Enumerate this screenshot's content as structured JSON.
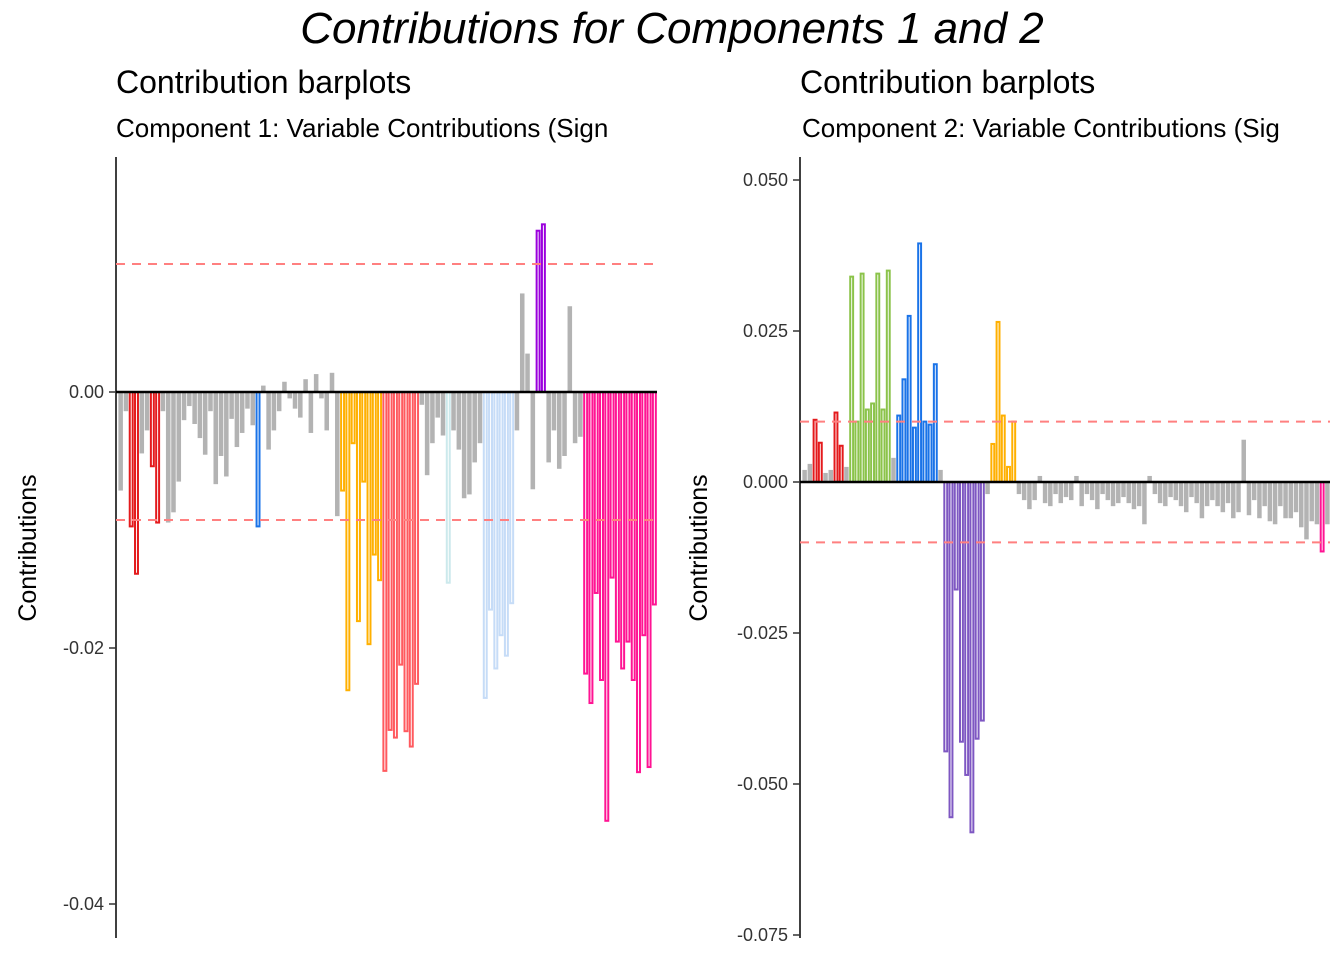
{
  "page": {
    "title": "Contributions for Components 1 and 2"
  },
  "colors": {
    "grey": "#b3b3b3",
    "axis": "#000000",
    "threshold": "#ff8080"
  },
  "chart_data": [
    {
      "type": "bar",
      "title": "Contribution barplots",
      "subtitle": "Component 1: Variable Contributions (Sign",
      "xlabel": "",
      "ylabel": "Contributions",
      "ylim": [
        -0.042,
        0.018
      ],
      "yticks": [
        0.0,
        -0.02,
        -0.04
      ],
      "yticklabels": [
        "0.00",
        "-0.02",
        "-0.04"
      ],
      "thresholds": [
        0.01,
        -0.01
      ],
      "grid": false,
      "legend": "none",
      "groups": [
        {
          "color": "#b3b3b3",
          "values": [
            -0.0077,
            -0.0015
          ]
        },
        {
          "color": "#e41a1c",
          "values": [
            -0.0105,
            -0.0142
          ]
        },
        {
          "color": "#b3b3b3",
          "values": [
            -0.0048,
            -0.003
          ]
        },
        {
          "color": "#e41a1c",
          "values": [
            -0.0058,
            -0.0102
          ]
        },
        {
          "color": "#b3b3b3",
          "values": [
            -0.0015,
            -0.0102,
            -0.0094,
            -0.007,
            -0.0022,
            -0.0011,
            -0.0025,
            -0.0036,
            -0.0049,
            -0.0015,
            -0.0072,
            -0.005,
            -0.0066,
            -0.0021,
            -0.0043,
            -0.0032,
            -0.0013,
            -0.0026
          ]
        },
        {
          "color": "#1a73e8",
          "values": [
            -0.0105
          ]
        },
        {
          "color": "#b3b3b3",
          "values": [
            0.0005,
            -0.0045,
            -0.003,
            -0.0015,
            0.0008,
            -0.0005,
            -0.0013,
            -0.002,
            0.001,
            -0.0032,
            0.0014,
            -0.0005,
            -0.003,
            0.0015,
            -0.0097
          ]
        },
        {
          "color": "#ffb000",
          "values": [
            -0.0077,
            -0.0233,
            -0.004,
            -0.0179,
            -0.007,
            -0.0197,
            -0.0127,
            -0.0147
          ]
        },
        {
          "color": "#ff5a5f",
          "values": [
            -0.0296,
            -0.0264,
            -0.027,
            -0.0213,
            -0.0265,
            -0.0277,
            -0.0228
          ]
        },
        {
          "color": "#b3b3b3",
          "values": [
            -0.001,
            -0.0065,
            -0.004,
            -0.002,
            -0.0034
          ]
        },
        {
          "color": "#cce9ec",
          "values": [
            -0.0149
          ]
        },
        {
          "color": "#b3b3b3",
          "values": [
            -0.003,
            -0.0045,
            -0.0083,
            -0.008,
            -0.0055,
            -0.004
          ]
        },
        {
          "color": "#c6dcf7",
          "values": [
            -0.0239,
            -0.017,
            -0.0216,
            -0.019,
            -0.0206,
            -0.0165
          ]
        },
        {
          "color": "#b3b3b3",
          "values": [
            -0.003,
            0.0077,
            0.003,
            -0.0076
          ]
        },
        {
          "color": "#9b00dd",
          "values": [
            0.0126,
            0.0131
          ]
        },
        {
          "color": "#b3b3b3",
          "values": [
            -0.0055,
            -0.003,
            -0.006,
            -0.005,
            0.0067,
            -0.004,
            -0.0035
          ]
        },
        {
          "color": "#ff1493",
          "values": [
            -0.022,
            -0.0243,
            -0.0157,
            -0.0225,
            -0.0335,
            -0.0145,
            -0.0195,
            -0.0216,
            -0.0195,
            -0.0225,
            -0.0297,
            -0.019,
            -0.0293,
            -0.0166
          ]
        }
      ]
    },
    {
      "type": "bar",
      "title": "Contribution barplots",
      "subtitle": "Component 2: Variable Contributions (Sig",
      "xlabel": "",
      "ylabel": "Contributions",
      "ylim": [
        -0.075,
        0.054
      ],
      "yticks": [
        0.05,
        0.025,
        0.0,
        -0.025,
        -0.05,
        -0.075
      ],
      "yticklabels": [
        "0.050",
        "0.025",
        "0.000",
        "-0.025",
        "-0.050",
        "-0.075"
      ],
      "thresholds": [
        0.01,
        -0.01
      ],
      "grid": false,
      "legend": "none",
      "groups": [
        {
          "color": "#b3b3b3",
          "values": [
            0.002,
            0.003
          ]
        },
        {
          "color": "#e41a1c",
          "values": [
            0.0103,
            0.0065
          ]
        },
        {
          "color": "#b3b3b3",
          "values": [
            0.0015,
            0.002
          ]
        },
        {
          "color": "#e41a1c",
          "values": [
            0.0115,
            0.006
          ]
        },
        {
          "color": "#b3b3b3",
          "values": [
            0.0025
          ]
        },
        {
          "color": "#8bc34a",
          "values": [
            0.034,
            0.01,
            0.0345,
            0.012,
            0.013,
            0.0345,
            0.012,
            0.035
          ]
        },
        {
          "color": "#b3b3b3",
          "values": [
            0.004
          ]
        },
        {
          "color": "#1a73e8",
          "values": [
            0.011,
            0.017,
            0.0275,
            0.009,
            0.0395,
            0.01,
            0.0095,
            0.0195
          ]
        },
        {
          "color": "#b3b3b3",
          "values": [
            0.002
          ]
        },
        {
          "color": "#7e57c2",
          "values": [
            -0.0446,
            -0.0555,
            -0.0178,
            -0.043,
            -0.0485,
            -0.058,
            -0.0425,
            -0.0395
          ]
        },
        {
          "color": "#b3b3b3",
          "values": [
            -0.002
          ]
        },
        {
          "color": "#ffb000",
          "values": [
            0.0063,
            0.0265,
            0.011,
            0.0025,
            0.01
          ]
        },
        {
          "color": "#b3b3b3",
          "values": [
            -0.002,
            -0.003,
            -0.0045,
            -0.003,
            0.001,
            -0.0035,
            -0.004,
            -0.002,
            -0.0035,
            -0.0025,
            -0.003,
            0.001,
            -0.004,
            -0.002,
            -0.003,
            -0.0045,
            -0.002,
            -0.003,
            -0.004,
            -0.0035,
            -0.0025,
            -0.0035,
            -0.0045,
            -0.004,
            -0.007,
            0.001,
            -0.002,
            -0.0035,
            -0.004,
            -0.0025,
            -0.003,
            -0.004,
            -0.005,
            -0.0025,
            -0.0035,
            -0.006,
            -0.004,
            -0.003,
            -0.004,
            -0.005,
            -0.0035,
            -0.006,
            -0.005,
            0.007,
            -0.0055,
            -0.003,
            -0.006,
            -0.004,
            -0.0065,
            -0.007,
            -0.004,
            -0.006,
            -0.006,
            -0.005,
            -0.0075,
            -0.0095,
            -0.0065,
            -0.007
          ]
        },
        {
          "color": "#ff1493",
          "values": [
            -0.0115
          ]
        },
        {
          "color": "#b3b3b3",
          "values": [
            -0.007
          ]
        }
      ]
    }
  ]
}
